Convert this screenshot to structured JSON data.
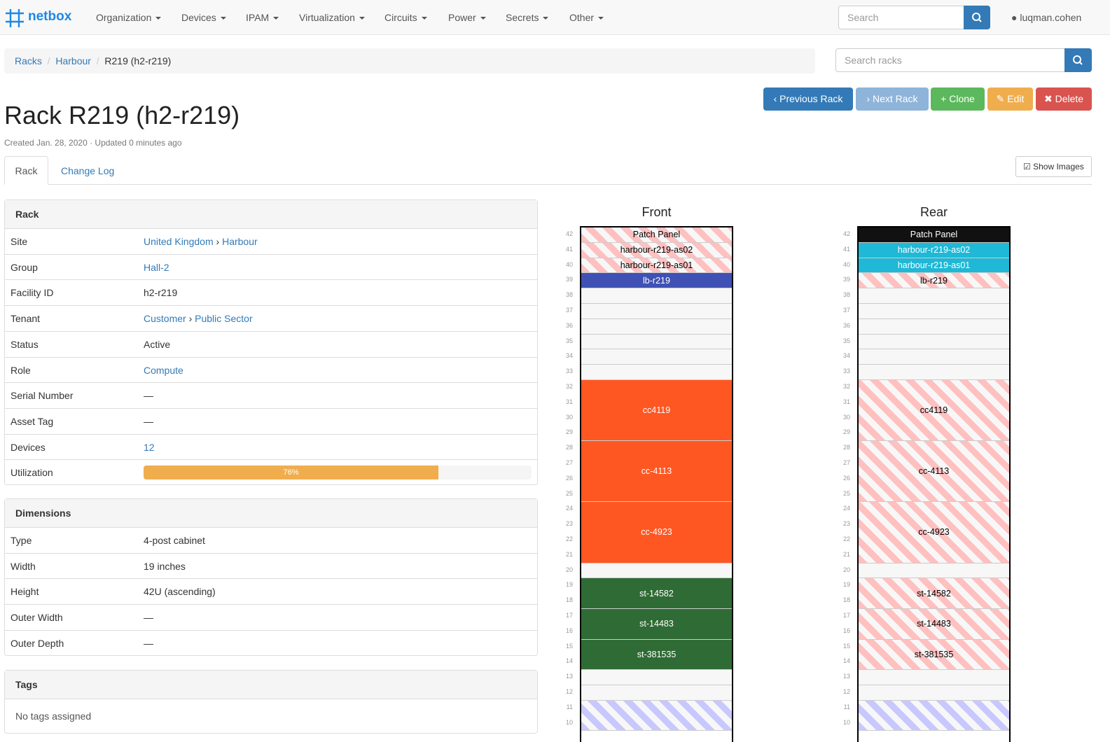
{
  "navbar": {
    "brand": "netbox",
    "menus": [
      "Organization",
      "Devices",
      "IPAM",
      "Virtualization",
      "Circuits",
      "Power",
      "Secrets",
      "Other"
    ],
    "search_placeholder": "Search",
    "user": "luqman.cohen"
  },
  "breadcrumb": {
    "items": [
      "Racks",
      "Harbour",
      "R219 (h2-r219)"
    ],
    "search_placeholder": "Search racks"
  },
  "actions": [
    {
      "text": "Previous Rack",
      "color": "#337ab7"
    },
    {
      "text": "Next Rack",
      "color": "#8fb4da"
    },
    {
      "text": "Clone",
      "color": "#5cb85c"
    },
    {
      "text": "Edit",
      "color": "#f0ad4e"
    },
    {
      "text": "Delete",
      "color": "#d9534f"
    }
  ],
  "title": "Rack R219 (h2-r219)",
  "meta": "Created Jan. 28, 2020 · Updated 0 minutes ago",
  "tabs": [
    "Rack",
    "Change Log"
  ],
  "show_images": "Show Images",
  "rack_panel": {
    "heading": "Rack",
    "rows": [
      {
        "label": "Site",
        "value": [
          "United Kingdom",
          "Harbour"
        ]
      },
      {
        "label": "Group",
        "value": [
          "Hall-2"
        ]
      },
      {
        "label": "Facility ID",
        "value": "h2-r219"
      },
      {
        "label": "Tenant",
        "value": [
          "Customer",
          "Public Sector"
        ]
      },
      {
        "label": "Status",
        "value": "Active"
      },
      {
        "label": "Role",
        "value": [
          "Compute"
        ]
      },
      {
        "label": "Serial Number",
        "value": "—"
      },
      {
        "label": "Asset Tag",
        "value": "—"
      },
      {
        "label": "Devices",
        "value": [
          "12"
        ]
      },
      {
        "label": "Utilization",
        "value": 76,
        "value_label": "76%"
      }
    ]
  },
  "dimensions_panel": {
    "heading": "Dimensions",
    "rows": [
      {
        "label": "Type",
        "value": "4-post cabinet"
      },
      {
        "label": "Width",
        "value": "19 inches"
      },
      {
        "label": "Height",
        "value": "42U (ascending)"
      },
      {
        "label": "Outer Width",
        "value": "—"
      },
      {
        "label": "Outer Depth",
        "value": "—"
      }
    ]
  },
  "tags_panel": {
    "heading": "Tags",
    "text": "No tags assigned"
  },
  "elevations": {
    "units": [
      42,
      41,
      40,
      39,
      38,
      37,
      36,
      35,
      34,
      33,
      32,
      31,
      30,
      29,
      28,
      27,
      26,
      25,
      24,
      23,
      22,
      21,
      20,
      19,
      18,
      17,
      16,
      15,
      14,
      13,
      12,
      11,
      10
    ],
    "faces": [
      {
        "title": "Front",
        "devices": [
          {
            "name": "Patch Panel",
            "u": 42,
            "height": 1,
            "color": "#ffc0c0",
            "striped": true
          },
          {
            "name": "harbour-r219-as02",
            "u": 41,
            "height": 1,
            "color": "#ffc0c0",
            "striped": true
          },
          {
            "name": "harbour-r219-as01",
            "u": 40,
            "height": 1,
            "color": "#ffc0c0",
            "striped": true
          },
          {
            "name": "lb-r219",
            "u": 39,
            "height": 1,
            "color": "#3f51b5"
          },
          {
            "name": "cc4119",
            "u": 29,
            "height": 4,
            "color": "#ff5722"
          },
          {
            "name": "cc-4113",
            "u": 25,
            "height": 4,
            "color": "#ff5722"
          },
          {
            "name": "cc-4923",
            "u": 21,
            "height": 4,
            "color": "#ff5722"
          },
          {
            "name": "st-14582",
            "u": 18,
            "height": 2,
            "color": "#2f6b34"
          },
          {
            "name": "st-14483",
            "u": 16,
            "height": 2,
            "color": "#2f6b34"
          },
          {
            "name": "st-381535",
            "u": 14,
            "height": 2,
            "color": "#2f6b34"
          },
          {
            "u": 10,
            "height": 2,
            "color": "#c8c8ff",
            "striped": true
          }
        ]
      },
      {
        "title": "Rear",
        "devices": [
          {
            "name": "Patch Panel",
            "u": 42,
            "height": 1,
            "color": "#111111"
          },
          {
            "name": "harbour-r219-as02",
            "u": 41,
            "height": 1,
            "color": "#1fb8d6"
          },
          {
            "name": "harbour-r219-as01",
            "u": 40,
            "height": 1,
            "color": "#1fb8d6"
          },
          {
            "name": "lb-r219",
            "u": 39,
            "height": 1,
            "color": "#ffc0c0",
            "striped": true
          },
          {
            "name": "cc4119",
            "u": 29,
            "height": 4,
            "color": "#ffc0c0",
            "striped": true
          },
          {
            "name": "cc-4113",
            "u": 25,
            "height": 4,
            "color": "#ffc0c0",
            "striped": true
          },
          {
            "name": "cc-4923",
            "u": 21,
            "height": 4,
            "color": "#ffc0c0",
            "striped": true
          },
          {
            "name": "st-14582",
            "u": 18,
            "height": 2,
            "color": "#ffc0c0",
            "striped": true
          },
          {
            "name": "st-14483",
            "u": 16,
            "height": 2,
            "color": "#ffc0c0",
            "striped": true
          },
          {
            "name": "st-381535",
            "u": 14,
            "height": 2,
            "color": "#ffc0c0",
            "striped": true
          },
          {
            "u": 10,
            "height": 2,
            "color": "#c8c8ff",
            "striped": true
          }
        ]
      }
    ]
  }
}
